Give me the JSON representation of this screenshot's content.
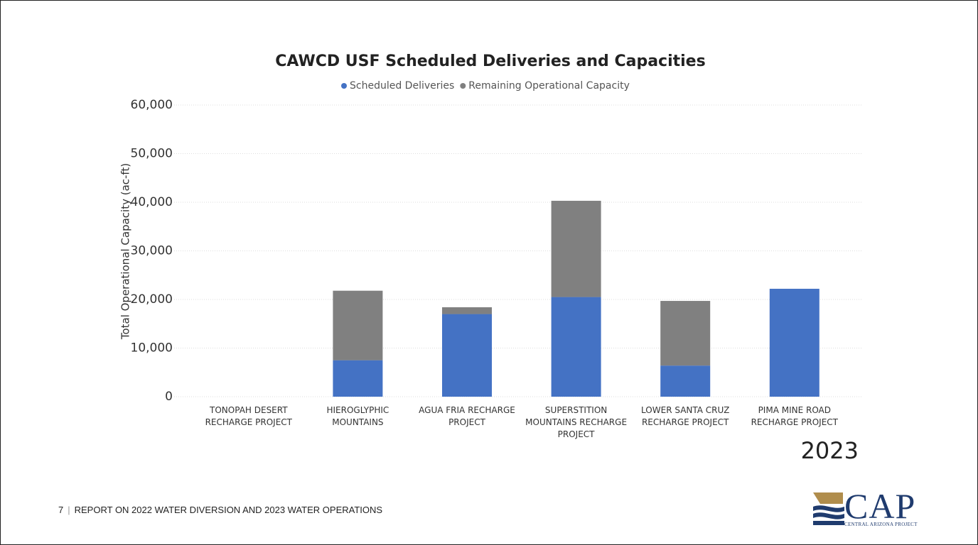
{
  "chart_data": {
    "type": "stacked_bar",
    "title": "CAWCD USF Scheduled Deliveries and Capacities",
    "y_label": "Total Operational Capacity (ac-ft)",
    "categories": [
      "TONOPAH DESERT RECHARGE PROJECT",
      "HIEROGLYPHIC MOUNTAINS",
      "AGUA FRIA RECHARGE PROJECT",
      "SUPERSTITION MOUNTAINS RECHARGE PROJECT",
      "LOWER SANTA CRUZ RECHARGE PROJECT",
      "PIMA MINE ROAD RECHARGE PROJECT"
    ],
    "series": [
      {
        "name": "Scheduled Deliveries",
        "color": "#4472c4",
        "values": [
          0,
          7500,
          17000,
          20500,
          6400,
          22200
        ]
      },
      {
        "name": "Remaining Operational Capacity",
        "color": "#808080",
        "values": [
          0,
          14300,
          1400,
          19800,
          13300,
          0
        ]
      }
    ],
    "ylim": [
      0,
      60000
    ],
    "yticks": [
      0,
      {
        "value": 10000,
        "label": "10,000"
      },
      {
        "value": 20000,
        "label": "20,000"
      },
      {
        "value": 30000,
        "label": "30,000"
      },
      {
        "value": 40000,
        "label": "40,000"
      },
      {
        "value": 50000,
        "label": "50,000"
      },
      {
        "value": 60000,
        "label": "60,000"
      }
    ],
    "grid": true,
    "legend": "top"
  },
  "page": {
    "year": "2023",
    "page_number": "7",
    "footer": "REPORT ON 2022 WATER DIVERSION AND 2023 WATER OPERATIONS",
    "logo": "CAP",
    "logo_subtitle": "CENTRAL ARIZONA PROJECT"
  }
}
